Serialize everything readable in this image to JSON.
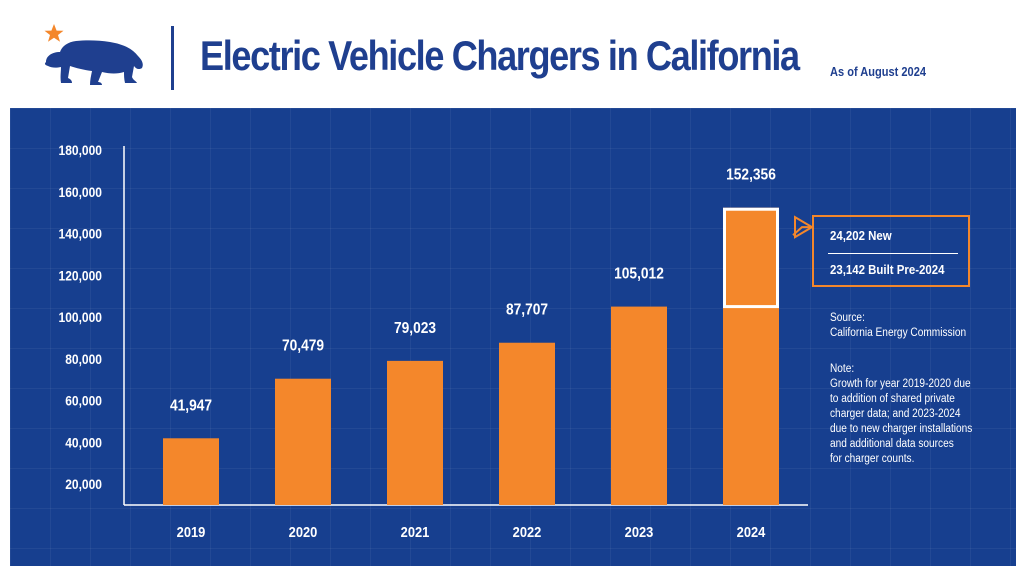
{
  "header": {
    "title": "Electric Vehicle Chargers in California",
    "as_of": "As of August 2024"
  },
  "icons": [
    "california-bear-icon",
    "star-icon"
  ],
  "colors": {
    "panel": "#173f8f",
    "bar": "#f4872b",
    "title": "#1f3f8f",
    "star": "#f4872b",
    "highlight_outline": "#ffffff"
  },
  "callout": {
    "new": "24,202 New",
    "pre": "23,142 Built Pre-2024"
  },
  "source": {
    "label": "Source:",
    "text": "California Energy Commission"
  },
  "note": {
    "label": "Note:",
    "lines": [
      "Growth for year 2019-2020 due",
      "to addition of shared private",
      "charger data; and 2023-2024",
      "due to new charger installations",
      "and additional data sources",
      "for charger counts."
    ]
  },
  "chart_data": {
    "type": "bar",
    "title": "Electric Vehicle Chargers in California",
    "categories": [
      "2019",
      "2020",
      "2021",
      "2022",
      "2023",
      "2024"
    ],
    "values": [
      41947,
      70479,
      79023,
      87707,
      105012,
      152356
    ],
    "value_labels": [
      "41,947",
      "70,479",
      "79,023",
      "87,707",
      "105,012",
      "152,356"
    ],
    "y_ticks": [
      20000,
      40000,
      60000,
      80000,
      100000,
      120000,
      140000,
      160000,
      180000
    ],
    "y_tick_labels": [
      "20,000",
      "40,000",
      "60,000",
      "80,000",
      "100,000",
      "120,000",
      "140,000",
      "160,000",
      "180,000"
    ],
    "ylim": [
      10000,
      180000
    ],
    "highlight": {
      "category": "2024",
      "from": 105012,
      "to": 152356
    },
    "xlabel": "",
    "ylabel": "",
    "grid": false,
    "legend": "none"
  }
}
